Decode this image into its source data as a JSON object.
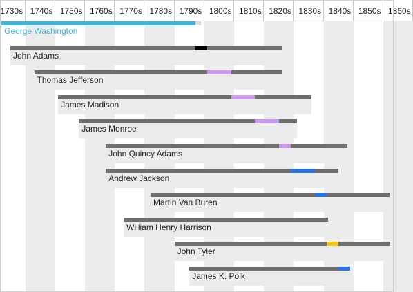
{
  "chart_data": {
    "type": "timeline",
    "title": "",
    "x_axis": {
      "unit": "year",
      "range": [
        1730,
        1860
      ],
      "tick_labels": [
        "1730s",
        "1740s",
        "1750s",
        "1760s",
        "1770s",
        "1780s",
        "1790s",
        "1800s",
        "1810s",
        "1820s",
        "1830s",
        "1840s",
        "1850s",
        "1860s"
      ],
      "shaded_decades": [
        "1740s",
        "1760s",
        "1780s",
        "1800s",
        "1820s",
        "1840s",
        "1860s"
      ]
    },
    "colors": {
      "lifespan": "#6e6e6e",
      "selected_lifespan": "#45b3d3",
      "selected_track": "#d8d8d8",
      "label_box": "#ebebeb",
      "federalist": "#000000",
      "democratic_republican": "#c99bea",
      "democratic": "#2f72d8",
      "whig": "#f2c91a"
    },
    "series": [
      {
        "name": "George Washington",
        "born": 1732,
        "died": 1799,
        "term_start": 1789,
        "term_end": 1797,
        "term_color": "#45b3d3",
        "selected": true
      },
      {
        "name": "John Adams",
        "born": 1735,
        "died": 1826,
        "term_start": 1797,
        "term_end": 1801,
        "term_color": "#000000"
      },
      {
        "name": "Thomas Jefferson",
        "born": 1743,
        "died": 1826,
        "term_start": 1801,
        "term_end": 1809,
        "term_color": "#c99bea"
      },
      {
        "name": "James Madison",
        "born": 1751,
        "died": 1836,
        "term_start": 1809,
        "term_end": 1817,
        "term_color": "#c99bea"
      },
      {
        "name": "James Monroe",
        "born": 1758,
        "died": 1831,
        "term_start": 1817,
        "term_end": 1825,
        "term_color": "#c99bea"
      },
      {
        "name": "John Quincy Adams",
        "born": 1767,
        "died": 1848,
        "term_start": 1825,
        "term_end": 1829,
        "term_color": "#c99bea"
      },
      {
        "name": "Andrew Jackson",
        "born": 1767,
        "died": 1845,
        "term_start": 1829,
        "term_end": 1837,
        "term_color": "#2f72d8"
      },
      {
        "name": "Martin Van Buren",
        "born": 1782,
        "died": 1862,
        "term_start": 1837,
        "term_end": 1841,
        "term_color": "#2f72d8"
      },
      {
        "name": "William Henry Harrison",
        "born": 1773,
        "died": 1841,
        "term_start": 1841,
        "term_end": 1841,
        "term_color": "#6e6e6e"
      },
      {
        "name": "John Tyler",
        "born": 1790,
        "died": 1862,
        "term_start": 1841,
        "term_end": 1845,
        "term_color": "#f2c91a"
      },
      {
        "name": "James K. Polk",
        "born": 1795,
        "died": 1849,
        "term_start": 1845,
        "term_end": 1849,
        "term_color": "#2f72d8"
      }
    ]
  }
}
